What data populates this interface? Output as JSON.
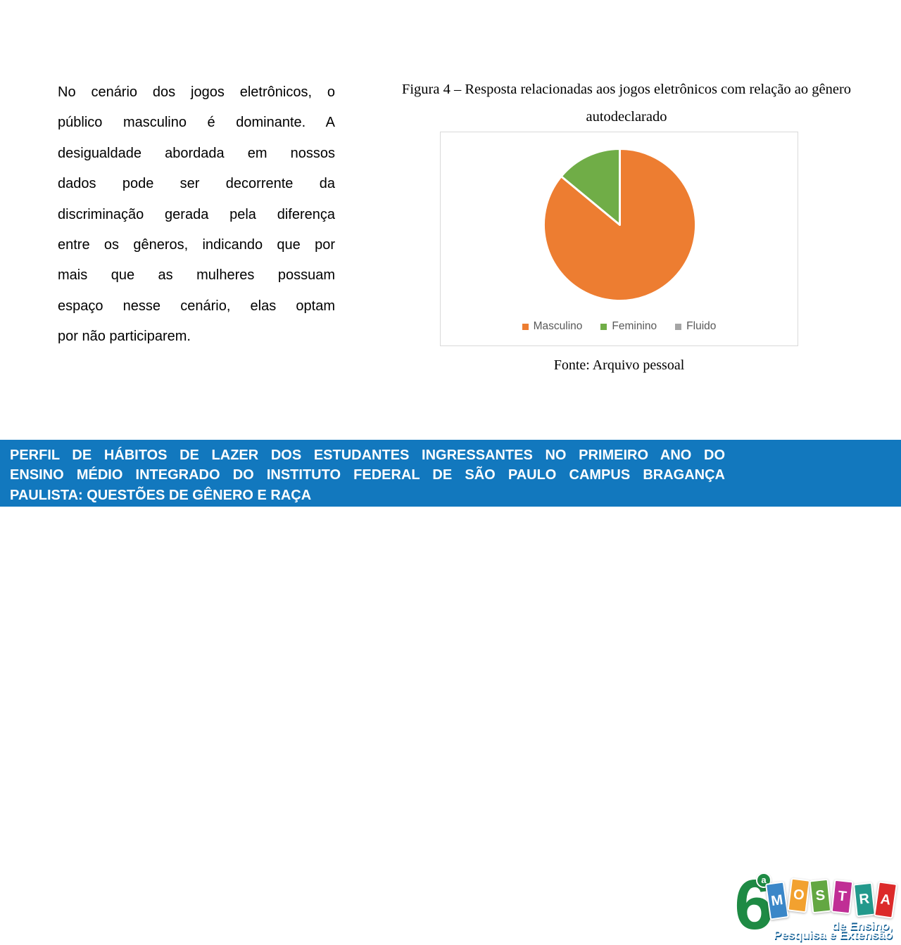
{
  "slide": {
    "background_color": "#FFFFFF"
  },
  "intro_paragraph": {
    "full_text": "No cenário dos jogos eletrônicos, o público masculino é dominante. A desigualdade abordada em nossos dados pode ser decorrente da discriminação gerada pela diferença entre os gêneros, indicando que por mais que as mulheres possuam espaço nesse cenário, elas optam por não participarem.",
    "lines": [
      "No cenário dos jogos eletrônicos, o",
      "público masculino é dominante. A",
      "desigualdade abordada em nossos",
      "dados pode ser decorrente da",
      "discriminação gerada pela diferença",
      "entre os gêneros, indicando que por",
      "mais que as mulheres possuam",
      "espaço nesse cenário, elas optam",
      "por não participarem."
    ]
  },
  "figure": {
    "caption_line1": "Figura 4 – Resposta relacionadas aos jogos eletrônicos com relação ao gênero",
    "caption_line2": "autodeclarado",
    "source": "Fonte: Arquivo pessoal"
  },
  "chart_data": {
    "type": "pie",
    "title": "Figura 4 – Resposta relacionadas aos jogos eletrônicos com relação ao gênero autodeclarado",
    "labels": [
      "Masculino",
      "Feminino",
      "Fluido"
    ],
    "values_percent": [
      86,
      14,
      0
    ],
    "colors": [
      "#ED7D31",
      "#70AD47",
      "#A5A5A5"
    ],
    "legend_position": "bottom",
    "start_angle_deg": -90,
    "direction": "clockwise",
    "data_labels_shown": false,
    "source": "Fonte: Arquivo pessoal"
  },
  "banner": {
    "background_color": "#1278BE",
    "text_color": "#FFFFFF",
    "lines": [
      "PERFIL DE HÁBITOS DE LAZER DOS ESTUDANTES INGRESSANTES NO PRIMEIRO ANO DO",
      "ENSINO MÉDIO INTEGRADO DO INSTITUTO FEDERAL DE SÃO PAULO CAMPUS BRAGANÇA",
      "PAULISTA: QUESTÕES DE GÊNERO E RAÇA"
    ]
  },
  "logo": {
    "edition_number": "6",
    "ordinal": "a",
    "number_color": "#1E8A44",
    "word": "MOSTRA",
    "letters": [
      {
        "ch": "M",
        "color": "#3B87C8"
      },
      {
        "ch": "O",
        "color": "#F2A12F"
      },
      {
        "ch": "S",
        "color": "#63A742"
      },
      {
        "ch": "T",
        "color": "#C02E95"
      },
      {
        "ch": "R",
        "color": "#23998C"
      },
      {
        "ch": "A",
        "color": "#DC2A2A"
      }
    ],
    "tagline_line1": "de Ensino,",
    "tagline_line2": "Pesquisa e Extensão"
  }
}
